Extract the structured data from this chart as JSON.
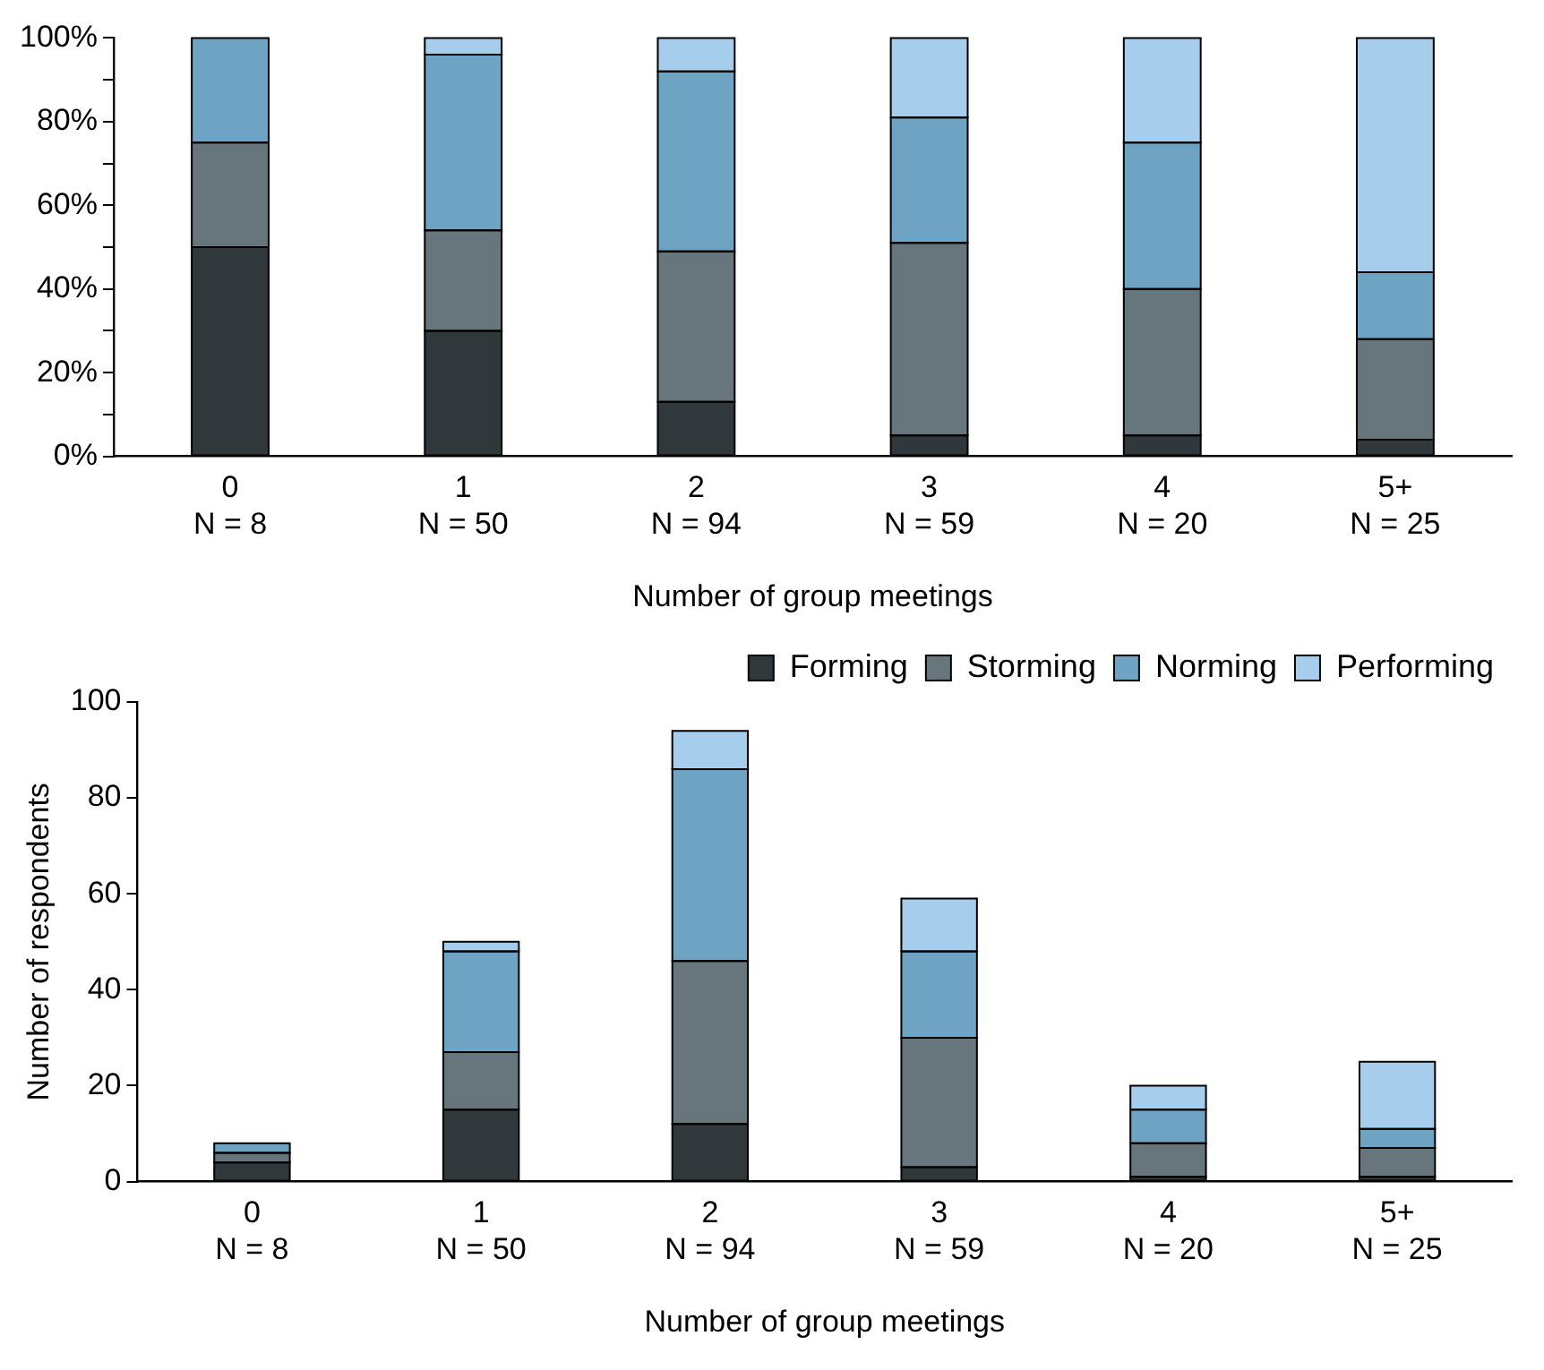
{
  "chart_data": [
    {
      "type": "bar",
      "stacked": true,
      "xlabel": "Number of group meetings",
      "categories": [
        "0\nN = 8",
        "1\nN = 50",
        "2\nN = 94",
        "3\nN = 59",
        "4\nN = 20",
        "5+\nN = 25"
      ],
      "series": [
        {
          "color": "#31383b",
          "values": [
            50,
            30,
            13,
            5,
            5,
            4
          ]
        },
        {
          "color": "#66767c",
          "values": [
            25,
            24,
            36,
            46,
            35,
            24
          ]
        },
        {
          "color": "#6fa3c3",
          "values": [
            25,
            42,
            43,
            30,
            35,
            16
          ]
        },
        {
          "color": "#a6cdec",
          "values": [
            0,
            4,
            8,
            19,
            25,
            56
          ]
        }
      ],
      "ylim": [
        0,
        100
      ],
      "yticks": [
        {
          "value": 0,
          "label": "0%"
        },
        {
          "value": 10,
          "label": null
        },
        {
          "value": 20,
          "label": "20%"
        },
        {
          "value": 30,
          "label": null
        },
        {
          "value": 40,
          "label": "40%"
        },
        {
          "value": 50,
          "label": null
        },
        {
          "value": 60,
          "label": "60%"
        },
        {
          "value": 70,
          "label": null
        },
        {
          "value": 80,
          "label": "80%"
        },
        {
          "value": 90,
          "label": null
        },
        {
          "value": 100,
          "label": "100%"
        }
      ],
      "grid": false,
      "legend": false
    },
    {
      "type": "bar",
      "stacked": true,
      "xlabel": "Number of group meetings",
      "ylabel": "Number of respondents",
      "categories": [
        "0\nN = 8",
        "1\nN = 50",
        "2\nN = 94",
        "3\nN = 59",
        "4\nN = 20",
        "5+\nN = 25"
      ],
      "series": [
        {
          "name": "Forming",
          "color": "#31383b",
          "values": [
            4,
            15,
            12,
            3,
            1,
            1
          ]
        },
        {
          "name": "Storming",
          "color": "#66767c",
          "values": [
            2,
            12,
            34,
            27,
            7,
            6
          ]
        },
        {
          "name": "Norming",
          "color": "#6fa3c3",
          "values": [
            2,
            21,
            40,
            18,
            7,
            4
          ]
        },
        {
          "name": "Performing",
          "color": "#a6cdec",
          "values": [
            0,
            2,
            8,
            11,
            5,
            14
          ]
        }
      ],
      "ylim": [
        0,
        100
      ],
      "yticks": [
        0,
        20,
        40,
        60,
        80,
        100
      ],
      "grid": false,
      "legend": "top right"
    }
  ]
}
